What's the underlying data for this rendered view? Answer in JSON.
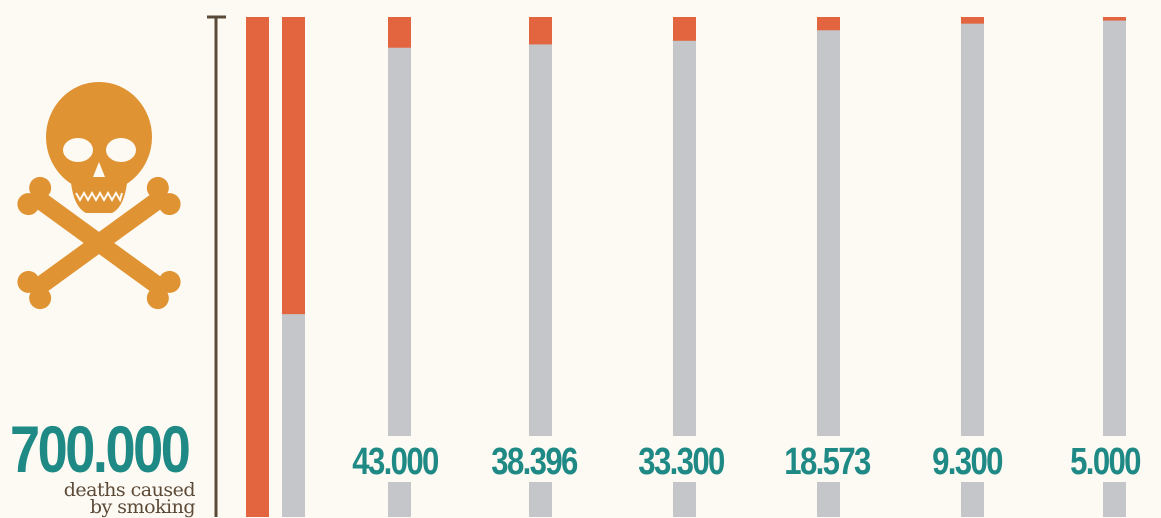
{
  "colors": {
    "background": "#fdfaf3",
    "accent_orange": "#e2653f",
    "bar_gray": "#c5c6ca",
    "teal": "#1f8a85",
    "axis_brown": "#5c4a38",
    "skull_orange": "#df9333"
  },
  "icon": "skull-and-crossbones-icon",
  "headline": {
    "value": "700.000",
    "caption_line1": "deaths caused",
    "caption_line2": "by smoking"
  },
  "chart_data": {
    "type": "bar",
    "orientation": "vertical",
    "encoding": "share of the 700.000 deaths caused by smoking shown as the orange part of each bar",
    "total": 700000,
    "series": [
      {
        "label": "700.000",
        "value": 700000,
        "value_label_shown": false
      },
      {
        "label": "",
        "value": 416000,
        "value_label_shown": false
      },
      {
        "label": "43.000",
        "value": 43000,
        "value_label_shown": true
      },
      {
        "label": "38.396",
        "value": 38396,
        "value_label_shown": true
      },
      {
        "label": "33.300",
        "value": 33300,
        "value_label_shown": true
      },
      {
        "label": "18.573",
        "value": 18573,
        "value_label_shown": true
      },
      {
        "label": "9.300",
        "value": 9300,
        "value_label_shown": true
      },
      {
        "label": "5.000",
        "value": 5000,
        "value_label_shown": true
      }
    ],
    "ylim": [
      0,
      700000
    ]
  }
}
